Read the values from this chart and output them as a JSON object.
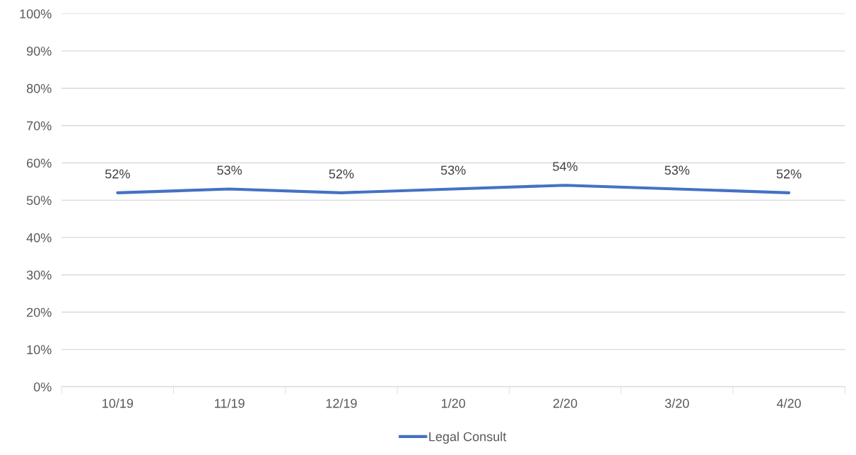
{
  "chart_data": {
    "type": "line",
    "categories": [
      "10/19",
      "11/19",
      "12/19",
      "1/20",
      "2/20",
      "3/20",
      "4/20"
    ],
    "series": [
      {
        "name": "Legal Consult",
        "color": "#4472c4",
        "values": [
          52,
          53,
          52,
          53,
          54,
          53,
          52
        ]
      }
    ],
    "ylim": [
      0,
      100
    ],
    "yticks": [
      {
        "value": 0,
        "label": "0%"
      },
      {
        "value": 10,
        "label": "10%"
      },
      {
        "value": 20,
        "label": "20%"
      },
      {
        "value": 30,
        "label": "30%"
      },
      {
        "value": 40,
        "label": "40%"
      },
      {
        "value": 50,
        "label": "50%"
      },
      {
        "value": 60,
        "label": "60%"
      },
      {
        "value": 70,
        "label": "70%"
      },
      {
        "value": 80,
        "label": "80%"
      },
      {
        "value": 90,
        "label": "90%"
      },
      {
        "value": 100,
        "label": "100%"
      }
    ],
    "value_labels": [
      "52%",
      "53%",
      "52%",
      "53%",
      "54%",
      "53%",
      "52%"
    ],
    "grid": "y",
    "legend": "bottom",
    "marker": "none",
    "line_style": "solid"
  }
}
